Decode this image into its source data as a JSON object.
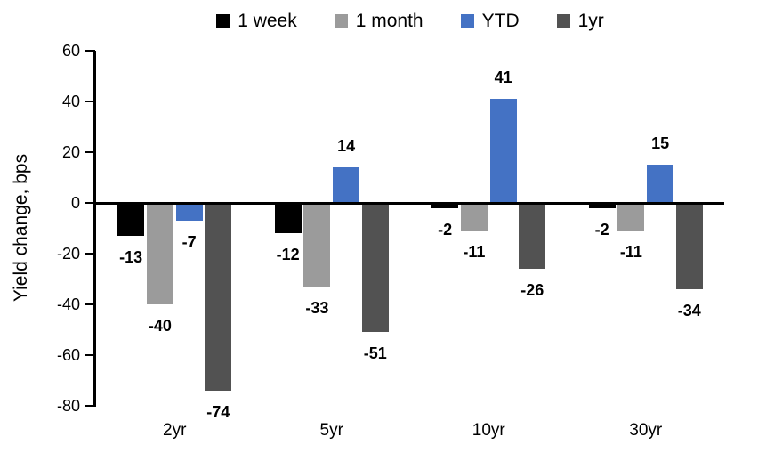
{
  "chart_data": {
    "type": "bar",
    "title": "",
    "ylabel": "Yield change, bps",
    "xlabel": "",
    "categories": [
      "2yr",
      "5yr",
      "10yr",
      "30yr"
    ],
    "series": [
      {
        "name": "1 week",
        "color": "#000000",
        "values": [
          -13,
          -12,
          -2,
          -2
        ]
      },
      {
        "name": "1 month",
        "color": "#9B9B9B",
        "values": [
          -40,
          -33,
          -11,
          -11
        ]
      },
      {
        "name": "YTD",
        "color": "#4472C4",
        "values": [
          -7,
          14,
          41,
          15
        ]
      },
      {
        "name": "1yr",
        "color": "#525252",
        "values": [
          -74,
          -51,
          -26,
          -34
        ]
      }
    ],
    "ylim": [
      -80,
      60
    ],
    "yticks": [
      60,
      40,
      20,
      0,
      -20,
      -40,
      -60,
      -80
    ],
    "grid": false,
    "legend_position": "top",
    "data_labels": true,
    "axis_color": "#000000",
    "text_color": "#000000"
  }
}
